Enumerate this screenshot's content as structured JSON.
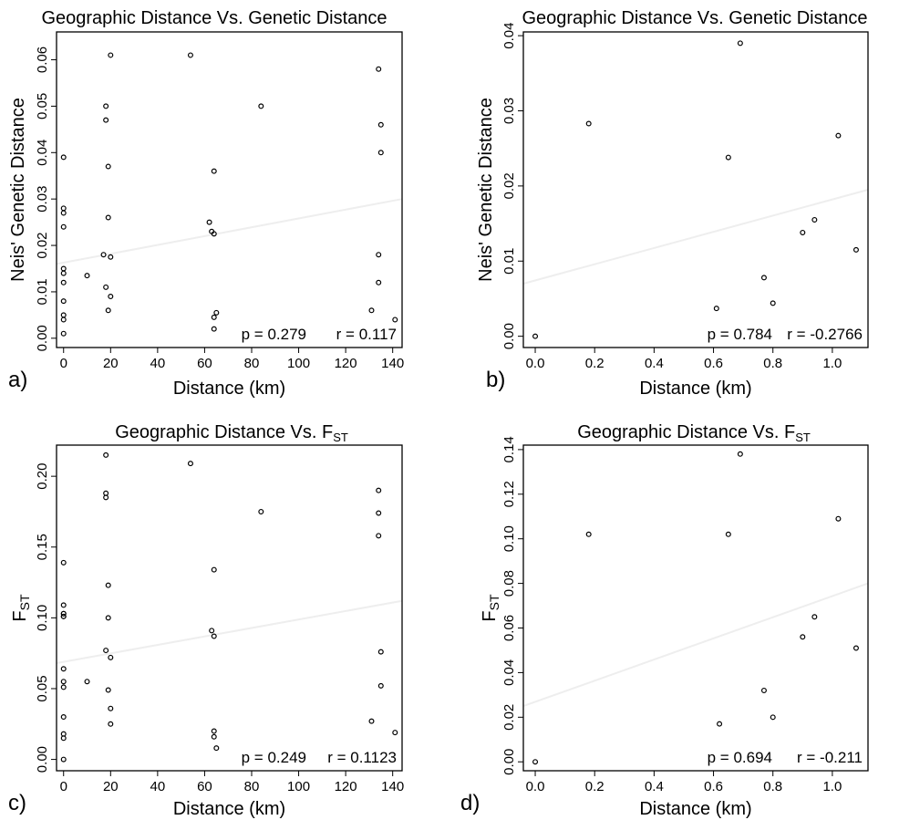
{
  "chart_data": [
    {
      "panel_label": "a)",
      "type": "scatter",
      "title": "Geographic Distance Vs. Genetic Distance",
      "xlabel": "Distance (km)",
      "ylabel": "Neis' Genetic Distance",
      "ylabel_sub": "",
      "xlim": [
        -3,
        144
      ],
      "ylim": [
        -0.002,
        0.066
      ],
      "xticks": [
        0,
        20,
        40,
        60,
        80,
        100,
        120,
        140
      ],
      "yticks": [
        0.0,
        0.01,
        0.02,
        0.03,
        0.04,
        0.05,
        0.06
      ],
      "ytick_decimals": 2,
      "annotation_p": "p = 0.279",
      "annotation_r": "r = 0.117",
      "trend_line": [
        [
          -3,
          0.016
        ],
        [
          144,
          0.03
        ]
      ],
      "x": [
        0,
        0,
        0,
        0,
        0,
        0,
        0,
        0,
        0,
        0,
        0,
        10,
        17,
        18,
        18,
        18,
        19,
        19,
        19,
        20,
        20,
        20,
        54,
        62,
        63,
        64,
        64,
        64,
        64,
        65,
        84,
        131,
        134,
        134,
        134,
        135,
        135,
        141
      ],
      "y": [
        0.039,
        0.028,
        0.027,
        0.024,
        0.015,
        0.014,
        0.012,
        0.008,
        0.005,
        0.004,
        0.001,
        0.0135,
        0.018,
        0.011,
        0.05,
        0.047,
        0.037,
        0.026,
        0.006,
        0.0175,
        0.009,
        0.061,
        0.061,
        0.025,
        0.023,
        0.036,
        0.0225,
        0.002,
        0.0045,
        0.0055,
        0.05,
        0.006,
        0.018,
        0.058,
        0.012,
        0.046,
        0.04,
        0.004
      ]
    },
    {
      "panel_label": "b)",
      "type": "scatter",
      "title": "Geographic Distance Vs. Genetic Distance",
      "xlabel": "Distance (km)",
      "ylabel": "Neis' Genetic Distance",
      "ylabel_sub": "",
      "xlim": [
        -0.04,
        1.12
      ],
      "ylim": [
        -0.0015,
        0.0405
      ],
      "xticks": [
        0.0,
        0.2,
        0.4,
        0.6,
        0.8,
        1.0
      ],
      "yticks": [
        0.0,
        0.01,
        0.02,
        0.03,
        0.04
      ],
      "ytick_decimals": 2,
      "annotation_p": "p = 0.784",
      "annotation_r": "r = -0.2766",
      "trend_line": [
        [
          -0.04,
          0.007
        ],
        [
          1.12,
          0.0195
        ]
      ],
      "x": [
        0.0,
        0.18,
        0.61,
        0.65,
        0.69,
        0.77,
        0.8,
        0.9,
        0.94,
        1.02,
        1.08
      ],
      "y": [
        0.0,
        0.0283,
        0.0037,
        0.0238,
        0.039,
        0.0078,
        0.0044,
        0.0138,
        0.0155,
        0.0267,
        0.0115
      ]
    },
    {
      "panel_label": "c)",
      "type": "scatter",
      "title": "Geographic Distance Vs. F",
      "title_sub": "ST",
      "xlabel": "Distance (km)",
      "ylabel": "F",
      "ylabel_sub": "ST",
      "xlim": [
        -3,
        144
      ],
      "ylim": [
        -0.008,
        0.222
      ],
      "xticks": [
        0,
        20,
        40,
        60,
        80,
        100,
        120,
        140
      ],
      "yticks": [
        0.0,
        0.05,
        0.1,
        0.15,
        0.2
      ],
      "ytick_decimals": 2,
      "annotation_p": "p = 0.249",
      "annotation_r": "r = 0.1123",
      "trend_line": [
        [
          -3,
          0.068
        ],
        [
          144,
          0.112
        ]
      ],
      "x": [
        0,
        0,
        0,
        0,
        0,
        0,
        0,
        0,
        0,
        0,
        0,
        0,
        0,
        10,
        18,
        18,
        18,
        18,
        19,
        19,
        19,
        20,
        20,
        20,
        54,
        63,
        64,
        64,
        64,
        64,
        65,
        84,
        131,
        134,
        134,
        134,
        135,
        135,
        141
      ],
      "y": [
        0.139,
        0.109,
        0.103,
        0.101,
        0.064,
        0.055,
        0.051,
        0.03,
        0.018,
        0.015,
        0.0,
        0.103,
        0.101,
        0.055,
        0.215,
        0.188,
        0.185,
        0.077,
        0.049,
        0.123,
        0.1,
        0.072,
        0.036,
        0.025,
        0.209,
        0.091,
        0.087,
        0.134,
        0.02,
        0.016,
        0.008,
        0.175,
        0.027,
        0.19,
        0.174,
        0.158,
        0.076,
        0.052,
        0.019
      ]
    },
    {
      "panel_label": "d)",
      "type": "scatter",
      "title": "Geographic Distance Vs. F",
      "title_sub": "ST",
      "xlabel": "Distance (km)",
      "ylabel": "F",
      "ylabel_sub": "ST",
      "xlim": [
        -0.04,
        1.12
      ],
      "ylim": [
        -0.004,
        0.142
      ],
      "xticks": [
        0.0,
        0.2,
        0.4,
        0.6,
        0.8,
        1.0
      ],
      "yticks": [
        0.0,
        0.02,
        0.04,
        0.06,
        0.08,
        0.1,
        0.12,
        0.14
      ],
      "ytick_decimals": 2,
      "annotation_p": "p = 0.694",
      "annotation_r": "r = -0.211",
      "trend_line": [
        [
          -0.04,
          0.025
        ],
        [
          1.12,
          0.08
        ]
      ],
      "x": [
        0.0,
        0.18,
        0.62,
        0.65,
        0.69,
        0.77,
        0.8,
        0.9,
        0.94,
        1.02,
        1.08
      ],
      "y": [
        0.0,
        0.102,
        0.017,
        0.102,
        0.138,
        0.032,
        0.02,
        0.056,
        0.065,
        0.109,
        0.051
      ]
    }
  ]
}
